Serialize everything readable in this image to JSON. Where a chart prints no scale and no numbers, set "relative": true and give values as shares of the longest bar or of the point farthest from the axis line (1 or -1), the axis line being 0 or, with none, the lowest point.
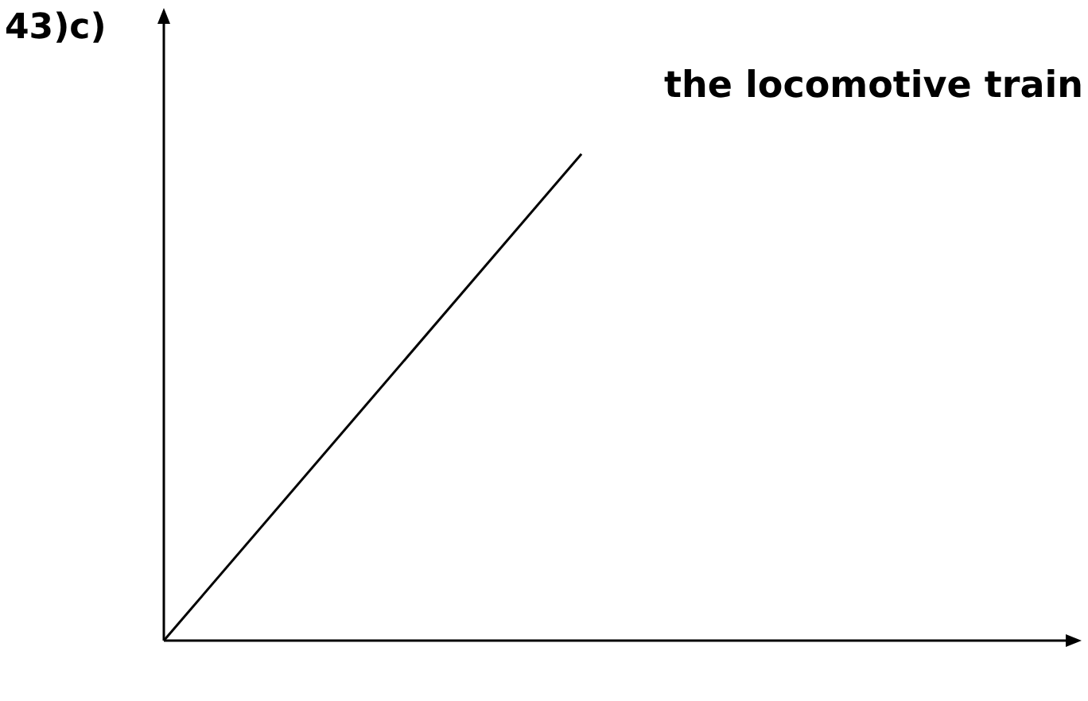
{
  "chart_data": {
    "type": "line",
    "title": "43)c)",
    "relative": true,
    "categories": [
      null,
      null
    ],
    "series": [
      {
        "name": "the locomotive train",
        "color": "#000000",
        "values": [
          0,
          1
        ]
      }
    ]
  }
}
